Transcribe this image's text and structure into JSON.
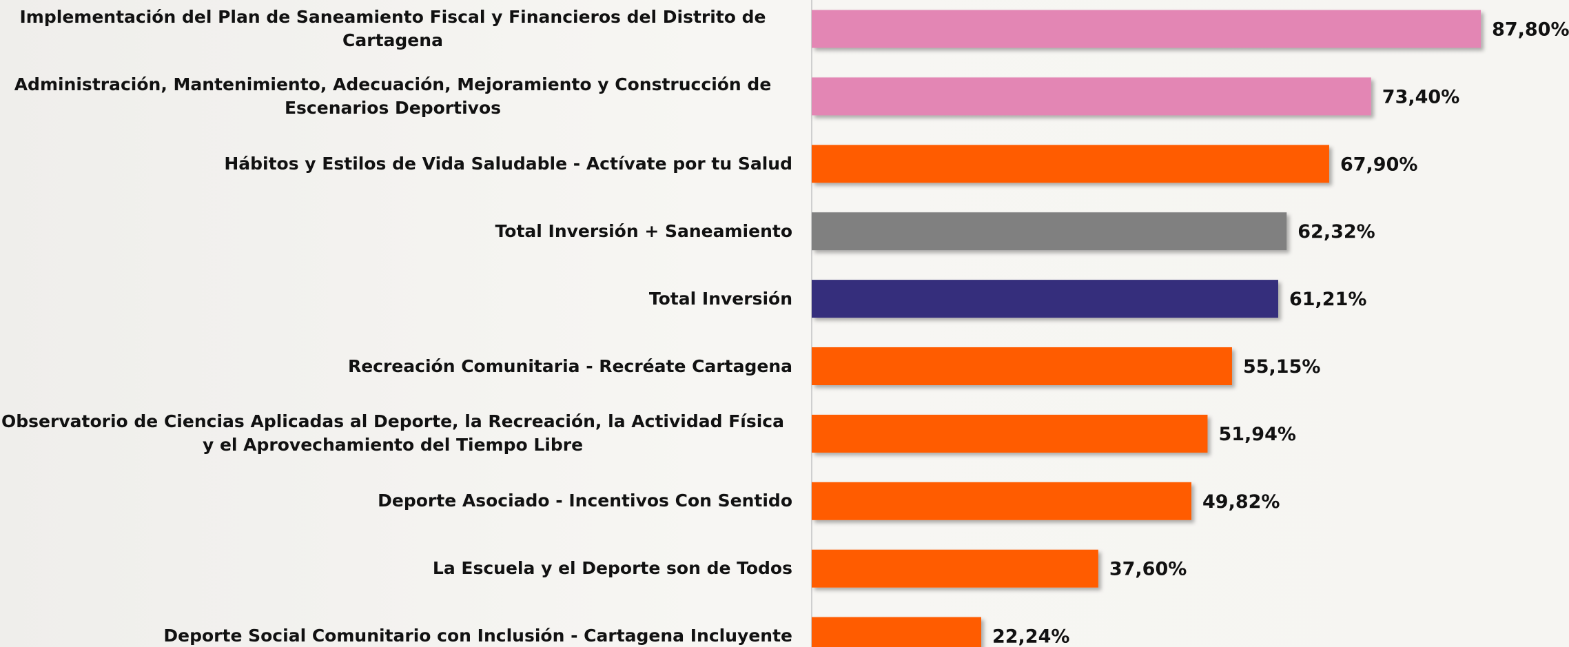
{
  "chart_data": {
    "type": "bar",
    "orientation": "horizontal",
    "categories": [
      "Implementación del Plan de Saneamiento Fiscal y Financieros del Distrito de Cartagena",
      "Administración, Mantenimiento, Adecuación, Mejoramiento y Construcción de Escenarios Deportivos",
      "Hábitos y Estilos de Vida Saludable - Actívate por tu Salud",
      "Total Inversión + Saneamiento",
      "Total Inversión",
      "Recreación Comunitaria - Recréate Cartagena",
      "Observatorio de Ciencias Aplicadas al Deporte, la Recreación, la Actividad Física y el Aprovechamiento del Tiempo Libre",
      "Deporte Asociado - Incentivos Con Sentido",
      "La Escuela y el Deporte son de Todos",
      "Deporte Social Comunitario con Inclusión - Cartagena Incluyente"
    ],
    "values": [
      87.8,
      73.4,
      67.9,
      62.32,
      61.21,
      55.15,
      51.94,
      49.82,
      37.6,
      22.24
    ],
    "value_labels": [
      "87,80%",
      "73,40%",
      "67,90%",
      "62,32%",
      "61,21%",
      "55,15%",
      "51,94%",
      "49,82%",
      "37,60%",
      "22,24%"
    ],
    "colors": [
      "#e386b4",
      "#e386b4",
      "#ff5c06",
      "#808080",
      "#342e7c",
      "#ff5c06",
      "#ff5c06",
      "#ff5c06",
      "#ff5c06",
      "#ff5c06"
    ]
  }
}
